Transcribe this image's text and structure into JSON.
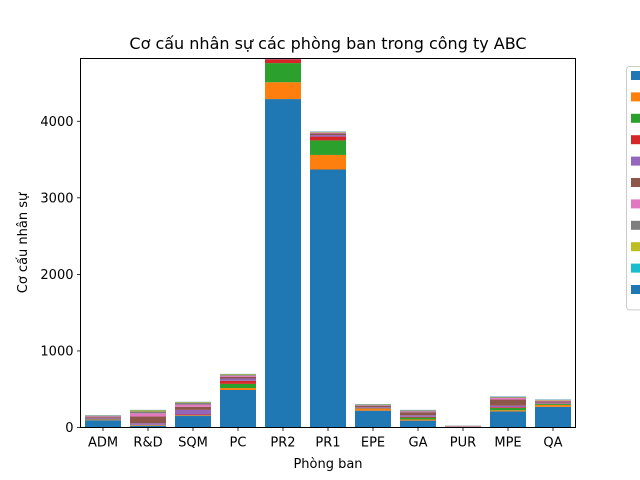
{
  "chart_data": {
    "type": "bar",
    "stacked": true,
    "title": "Cơ cấu nhân sự các phòng ban trong công ty ABC",
    "xlabel": "Phòng ban",
    "ylabel": "Cơ cấu nhân sự",
    "categories": [
      "ADM",
      "R&D",
      "SQM",
      "PC",
      "PR2",
      "PR1",
      "EPE",
      "GA",
      "PUR",
      "MPE",
      "QA"
    ],
    "ylim": [
      0,
      4820
    ],
    "yticks": [
      0,
      1000,
      2000,
      3000,
      4000
    ],
    "grid": false,
    "legend": {
      "placement": "right, outside plot (clipped)",
      "entry_colors": [
        "#1f77b4",
        "#ff7f0e",
        "#2ca02c",
        "#d62728",
        "#9467bd",
        "#8c564b",
        "#e377c2",
        "#7f7f7f",
        "#bcbd22",
        "#17becf",
        "#1f77b4"
      ]
    },
    "series": [
      {
        "color": "#1f77b4",
        "values": [
          95,
          20,
          150,
          490,
          4290,
          3370,
          220,
          90,
          5,
          210,
          270
        ]
      },
      {
        "color": "#ff7f0e",
        "values": [
          5,
          5,
          5,
          25,
          220,
          190,
          25,
          15,
          2,
          15,
          25
        ]
      },
      {
        "color": "#2ca02c",
        "values": [
          5,
          5,
          5,
          55,
          250,
          190,
          5,
          25,
          2,
          30,
          15
        ]
      },
      {
        "color": "#d62728",
        "values": [
          5,
          5,
          10,
          40,
          50,
          50,
          5,
          10,
          2,
          10,
          5
        ]
      },
      {
        "color": "#9467bd",
        "values": [
          10,
          20,
          60,
          30,
          10,
          20,
          10,
          20,
          3,
          20,
          10
        ]
      },
      {
        "color": "#8c564b",
        "values": [
          15,
          90,
          40,
          20,
          10,
          20,
          20,
          40,
          3,
          80,
          15
        ]
      },
      {
        "color": "#e377c2",
        "values": [
          10,
          40,
          30,
          15,
          10,
          10,
          5,
          10,
          2,
          20,
          10
        ]
      },
      {
        "color": "#7f7f7f",
        "values": [
          5,
          25,
          20,
          10,
          5,
          5,
          5,
          10,
          2,
          10,
          5
        ]
      },
      {
        "color": "#bcbd22",
        "values": [
          5,
          15,
          10,
          10,
          5,
          5,
          5,
          5,
          2,
          5,
          5
        ]
      },
      {
        "color": "#17becf",
        "values": [
          0,
          0,
          0,
          0,
          0,
          0,
          0,
          0,
          0,
          0,
          0
        ]
      },
      {
        "color": "#1f77b4",
        "values": [
          5,
          5,
          5,
          5,
          5,
          5,
          5,
          5,
          2,
          5,
          5
        ]
      }
    ]
  }
}
